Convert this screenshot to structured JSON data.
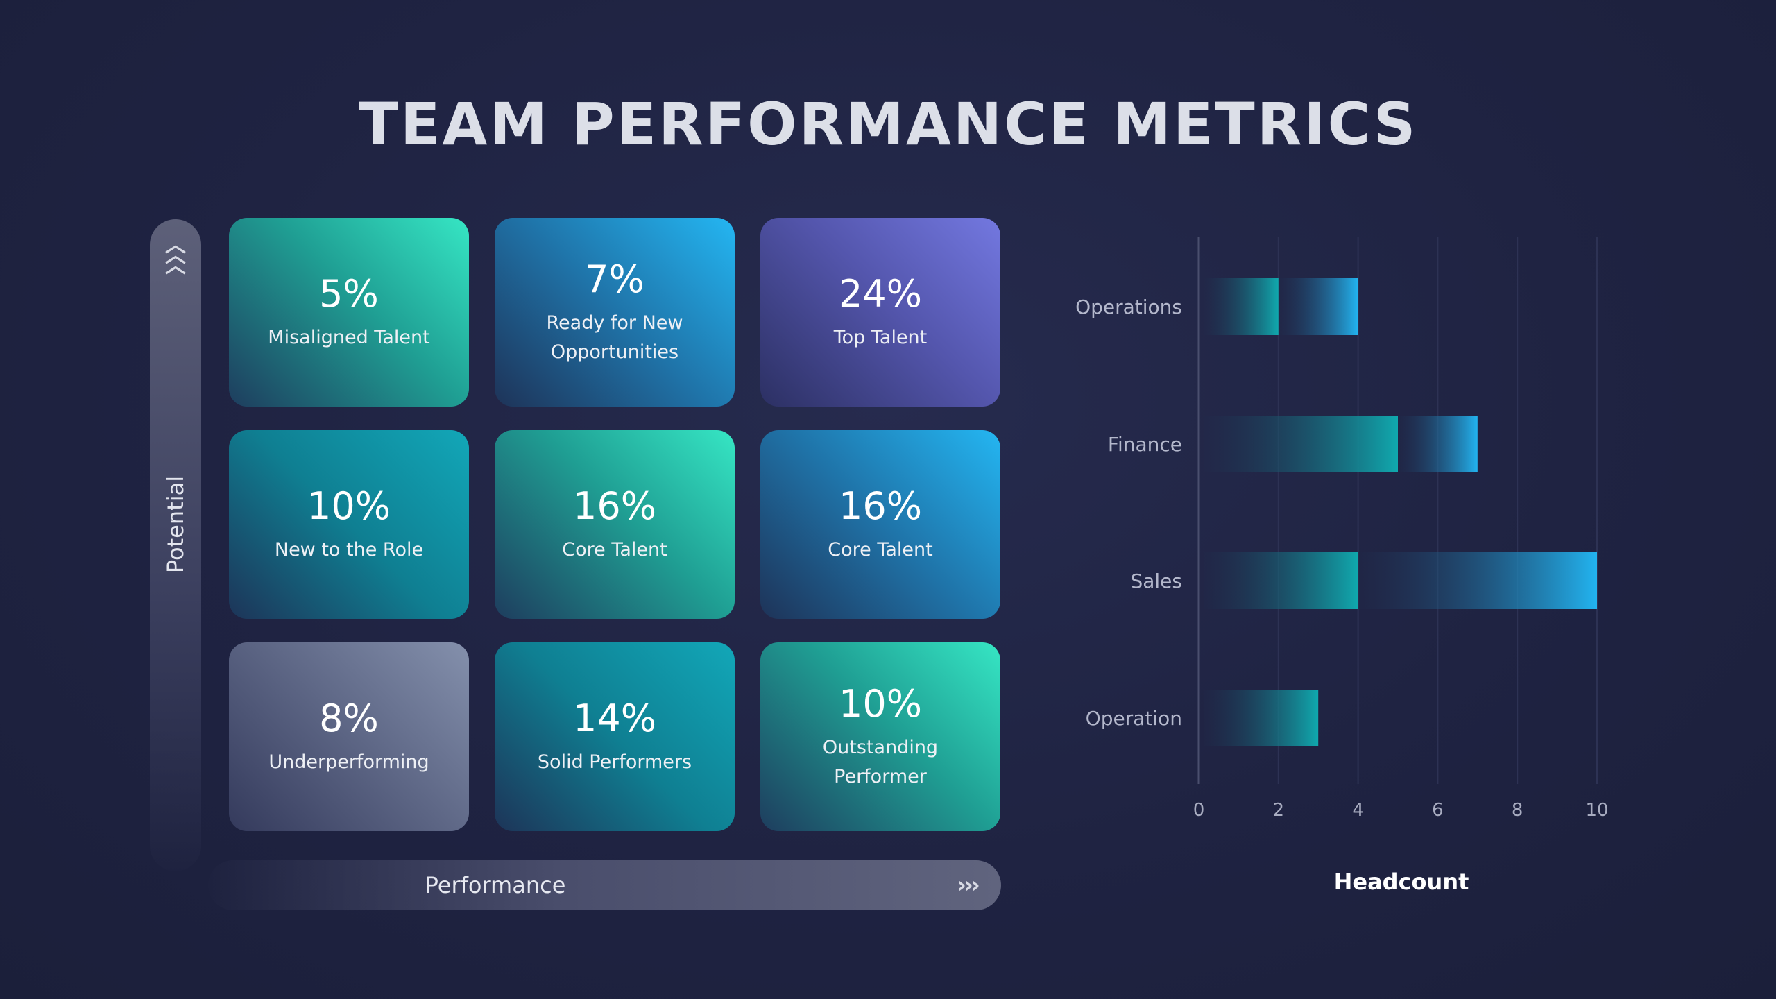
{
  "title": "TEAM PERFORMANCE METRICS",
  "matrix": {
    "y_axis_label": "Potential",
    "x_axis_label": "Performance",
    "tiles": [
      {
        "percent": "5%",
        "label": "Misaligned Talent",
        "color": "teal"
      },
      {
        "percent": "7%",
        "label": "Ready for New Opportunities",
        "color": "blue"
      },
      {
        "percent": "24%",
        "label": "Top Talent",
        "color": "purple"
      },
      {
        "percent": "10%",
        "label": "New to the Role",
        "color": "cyan"
      },
      {
        "percent": "16%",
        "label": "Core Talent",
        "color": "teal"
      },
      {
        "percent": "16%",
        "label": "Core Talent",
        "color": "blue"
      },
      {
        "percent": "8%",
        "label": "Underperforming",
        "color": "gray"
      },
      {
        "percent": "14%",
        "label": "Solid Performers",
        "color": "cyan"
      },
      {
        "percent": "10%",
        "label": "Outstanding Performer",
        "color": "teal"
      }
    ]
  },
  "chart_data": {
    "type": "bar",
    "orientation": "horizontal",
    "stacked": true,
    "categories": [
      "Operations",
      "Finance",
      "Sales",
      "Operation"
    ],
    "series": [
      {
        "values": [
          2,
          5,
          4,
          3
        ],
        "color": "#10a9ae"
      },
      {
        "values": [
          2,
          2,
          6,
          0
        ],
        "color": "#22b4f0"
      }
    ],
    "xlabel": "Headcount",
    "xlim": [
      0,
      10
    ],
    "xticks": [
      0,
      2,
      4,
      6,
      8,
      10
    ],
    "grid": true
  }
}
